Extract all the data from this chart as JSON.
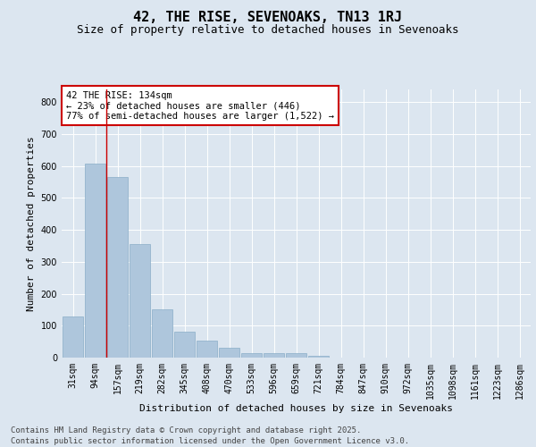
{
  "title": "42, THE RISE, SEVENOAKS, TN13 1RJ",
  "subtitle": "Size of property relative to detached houses in Sevenoaks",
  "xlabel": "Distribution of detached houses by size in Sevenoaks",
  "ylabel": "Number of detached properties",
  "categories": [
    "31sqm",
    "94sqm",
    "157sqm",
    "219sqm",
    "282sqm",
    "345sqm",
    "408sqm",
    "470sqm",
    "533sqm",
    "596sqm",
    "659sqm",
    "721sqm",
    "784sqm",
    "847sqm",
    "910sqm",
    "972sqm",
    "1035sqm",
    "1098sqm",
    "1161sqm",
    "1223sqm",
    "1286sqm"
  ],
  "values": [
    128,
    608,
    565,
    355,
    150,
    80,
    52,
    32,
    15,
    13,
    13,
    5,
    0,
    0,
    0,
    0,
    0,
    0,
    0,
    0,
    0
  ],
  "bar_color": "#aec6dc",
  "bar_edge_color": "#8aaec8",
  "vline_x_index": 1.5,
  "vline_color": "#cc0000",
  "annotation_text": "42 THE RISE: 134sqm\n← 23% of detached houses are smaller (446)\n77% of semi-detached houses are larger (1,522) →",
  "annotation_box_color": "#ffffff",
  "annotation_box_edge": "#cc0000",
  "ylim": [
    0,
    840
  ],
  "yticks": [
    0,
    100,
    200,
    300,
    400,
    500,
    600,
    700,
    800
  ],
  "bg_color": "#dce6f0",
  "plot_bg_color": "#dce6f0",
  "footer_line1": "Contains HM Land Registry data © Crown copyright and database right 2025.",
  "footer_line2": "Contains public sector information licensed under the Open Government Licence v3.0.",
  "title_fontsize": 11,
  "subtitle_fontsize": 9,
  "axis_label_fontsize": 8,
  "tick_fontsize": 7,
  "annotation_fontsize": 7.5,
  "footer_fontsize": 6.5
}
